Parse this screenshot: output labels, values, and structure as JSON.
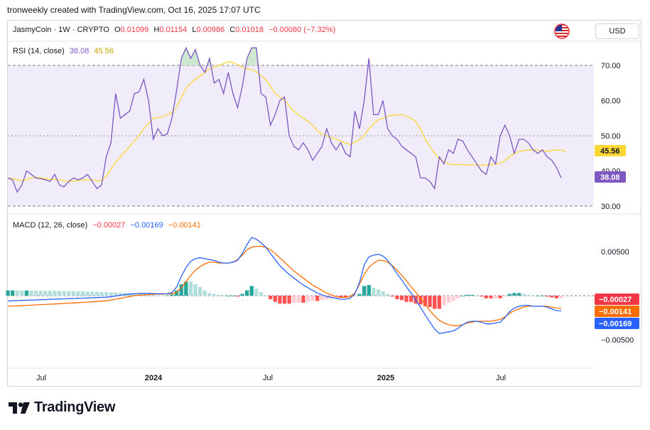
{
  "header": {
    "text": "tronweekly created with TradingView.com, Oct 16, 2025 17:07 UTC"
  },
  "symbol": {
    "name": "JasmyCoin · 1W · CRYPTO",
    "o_label": "O",
    "o": "0.01099",
    "h_label": "H",
    "h": "0.01154",
    "l_label": "L",
    "l": "0.00986",
    "c_label": "C",
    "c": "0.01018",
    "change": "−0.00080 (−7.32%)"
  },
  "currency": "USD",
  "rsi": {
    "label": "RSI (14, close)",
    "value": "38.08",
    "ma_value": "45.56"
  },
  "macd": {
    "label": "MACD (12, 26, close)",
    "hist_value": "−0.00027",
    "macd_value": "−0.00169",
    "signal_value": "−0.00141"
  },
  "colors": {
    "rsi": "#7e57c2",
    "rsi_ma": "#fdd835",
    "rsi_band": "#f0ecfa",
    "macd": "#2962ff",
    "signal": "#ff6d00",
    "hist_pos_strong": "#26a69a",
    "hist_pos_weak": "#b2dfdb",
    "hist_neg_strong": "#ff5252",
    "hist_neg_weak": "#ffcdd2",
    "negative_text": "#f23645"
  },
  "branding": {
    "logo_text": "TradingView",
    "logo_icon": "tradingview-logo-icon",
    "flag_icon": "us-flag-icon"
  },
  "chart_data": [
    {
      "type": "line",
      "title": "RSI (14, close)",
      "x_tick_labels": [
        "Jul",
        "2024",
        "Jul",
        "2025",
        "Jul"
      ],
      "y_tick_labels": [
        "70.00",
        "60.00",
        "50.00",
        "40.00",
        "30.00"
      ],
      "ylim": [
        30,
        75
      ],
      "band": [
        30,
        70
      ],
      "middle_line": 50,
      "series": [
        {
          "name": "RSI",
          "values": [
            38,
            37.5,
            34,
            36,
            40,
            39,
            38,
            37.8,
            37.5,
            37,
            39,
            36,
            35.5,
            37,
            38,
            37.5,
            38,
            39,
            37,
            35,
            36,
            44,
            48,
            62,
            55,
            56,
            57,
            62,
            62.5,
            66,
            60,
            49,
            52,
            50,
            50.5,
            55,
            63,
            72,
            75,
            72,
            74.5,
            70,
            68,
            72,
            65,
            66,
            62,
            68,
            62,
            58,
            64,
            72,
            75,
            75,
            62,
            61,
            53,
            56,
            60,
            61,
            50,
            47,
            46,
            48,
            46,
            43,
            45,
            47,
            52,
            48,
            46,
            48,
            45,
            44,
            57,
            52,
            60,
            72,
            56,
            56,
            60,
            52,
            50,
            49,
            47,
            46,
            45,
            44,
            38,
            38,
            37,
            35,
            44,
            42,
            46,
            45,
            49,
            48.5,
            46,
            44,
            42,
            40,
            39,
            44,
            42,
            50,
            53,
            50,
            45,
            49,
            49,
            48,
            46,
            45,
            46,
            44,
            43,
            41,
            38
          ]
        },
        {
          "name": "RSI MA",
          "values": [
            38,
            37.8,
            37.5,
            37.2,
            37.6,
            38,
            38.2,
            38,
            37.8,
            37.6,
            37.6,
            37.5,
            37.2,
            37,
            37.1,
            37.2,
            37.4,
            37.5,
            37.4,
            37.2,
            37.3,
            38.5,
            40.5,
            42.5,
            44,
            45.5,
            47,
            48.5,
            50,
            52,
            53.5,
            55,
            55.2,
            55.4,
            56,
            56.6,
            58,
            61,
            63.5,
            65,
            66,
            67,
            68,
            69,
            69.5,
            70,
            70.5,
            71,
            70.8,
            70.2,
            69.5,
            69,
            68.8,
            68.2,
            67,
            66,
            64,
            62,
            61,
            60,
            58.5,
            57,
            56,
            55,
            54,
            53,
            51.5,
            50.5,
            50,
            49.5,
            49,
            48.5,
            48,
            47.5,
            48.2,
            48.8,
            50,
            52,
            53.5,
            54.5,
            55,
            55.5,
            55.8,
            56,
            56,
            55.5,
            55,
            54,
            52,
            49,
            47,
            45,
            43.5,
            42.5,
            42,
            41.8,
            41.8,
            41.8,
            41.7,
            41.8,
            41.7,
            41.6,
            41.7,
            41.8,
            42,
            42.2,
            43,
            44,
            45,
            45.5,
            45.8,
            46,
            46,
            45.9,
            45.8,
            45.6,
            45.8,
            46,
            45.9,
            45.56
          ]
        }
      ]
    },
    {
      "type": "line",
      "title": "MACD (12, 26, close)",
      "x_tick_labels": [
        "Jul",
        "2024",
        "Jul",
        "2025",
        "Jul"
      ],
      "y_tick_labels": [
        "0.00500",
        "−0.00500"
      ],
      "ylim": [
        -0.0065,
        0.0085
      ],
      "series": [
        {
          "name": "MACD",
          "values": [
            -0.0006,
            -0.00058,
            -0.00056,
            -0.00054,
            -0.00052,
            -0.0005,
            -0.00048,
            -0.00046,
            -0.00044,
            -0.00042,
            -0.0004,
            -0.00038,
            -0.00036,
            -0.00034,
            -0.00032,
            -0.0003,
            -0.00028,
            -0.00026,
            -0.00024,
            -0.00022,
            -0.0002,
            -0.00018,
            -0.00012,
            -4e-05,
            5e-05,
            0.00012,
            0.00018,
            0.00022,
            0.00025,
            0.00027,
            0.00026,
            0.00024,
            0.00022,
            0.00021,
            0.00022,
            0.00035,
            0.001,
            0.0022,
            0.0032,
            0.0039,
            0.0042,
            0.0043,
            0.0042,
            0.0041,
            0.004,
            0.0038,
            0.0037,
            0.0037,
            0.0038,
            0.004,
            0.0048,
            0.0058,
            0.0066,
            0.0064,
            0.006,
            0.0055,
            0.0048,
            0.0041,
            0.0034,
            0.0029,
            0.0024,
            0.002,
            0.0016,
            0.0012,
            0.0009,
            0.0006,
            0.0003,
            0.0001,
            -0.0001,
            -0.0002,
            -0.0003,
            -0.0004,
            -0.0004,
            -0.0003,
            0.0002,
            0.0015,
            0.0035,
            0.0044,
            0.0046,
            0.0047,
            0.0045,
            0.004,
            0.0033,
            0.0025,
            0.0018,
            0.001,
            0.0003,
            -0.0005,
            -0.0013,
            -0.0022,
            -0.003,
            -0.0038,
            -0.0043,
            -0.0042,
            -0.0041,
            -0.004,
            -0.0037,
            -0.0033,
            -0.003,
            -0.0029,
            -0.0029,
            -0.003,
            -0.0032,
            -0.0032,
            -0.0031,
            -0.003,
            -0.0025,
            -0.0018,
            -0.0014,
            -0.0012,
            -0.0011,
            -0.0011,
            -0.0012,
            -0.0012,
            -0.0012,
            -0.0013,
            -0.0015,
            -0.0017,
            -0.00169
          ]
        },
        {
          "name": "Signal",
          "values": [
            -0.0012,
            -0.00118,
            -0.00115,
            -0.00112,
            -0.0011,
            -0.00108,
            -0.00105,
            -0.00102,
            -0.001,
            -0.00097,
            -0.00094,
            -0.00091,
            -0.00088,
            -0.00085,
            -0.00082,
            -0.00079,
            -0.00076,
            -0.00073,
            -0.0007,
            -0.00066,
            -0.00062,
            -0.00058,
            -0.0005,
            -0.0004,
            -0.0003,
            -0.0002,
            -0.0001,
            0,
            5e-05,
            0.0001,
            0.00013,
            0.00015,
            0.00017,
            0.00018,
            0.00019,
            0.00022,
            0.0004,
            0.0009,
            0.0016,
            0.0023,
            0.0029,
            0.0033,
            0.0036,
            0.0038,
            0.0038,
            0.0037,
            0.0037,
            0.0037,
            0.0038,
            0.0041,
            0.0046,
            0.0052,
            0.0055,
            0.0056,
            0.0056,
            0.0055,
            0.0052,
            0.0048,
            0.0043,
            0.0038,
            0.0033,
            0.0028,
            0.0024,
            0.002,
            0.0016,
            0.0012,
            0.0009,
            0.0006,
            0.0003,
            0.0001,
            -0.0001,
            -0.0002,
            -0.0002,
            -0.0001,
            0.0003,
            0.0013,
            0.0024,
            0.0032,
            0.0037,
            0.004,
            0.004,
            0.0038,
            0.0034,
            0.0029,
            0.0023,
            0.0017,
            0.001,
            0.0004,
            -0.0003,
            -0.001,
            -0.0017,
            -0.0023,
            -0.0028,
            -0.0031,
            -0.0033,
            -0.0034,
            -0.0034,
            -0.0033,
            -0.0031,
            -0.003,
            -0.0029,
            -0.0029,
            -0.0029,
            -0.0029,
            -0.0028,
            -0.0027,
            -0.0024,
            -0.002,
            -0.0017,
            -0.0015,
            -0.0013,
            -0.0012,
            -0.0012,
            -0.0012,
            -0.0012,
            -0.0012,
            -0.0013,
            -0.0014,
            -0.00141
          ]
        }
      ]
    }
  ]
}
